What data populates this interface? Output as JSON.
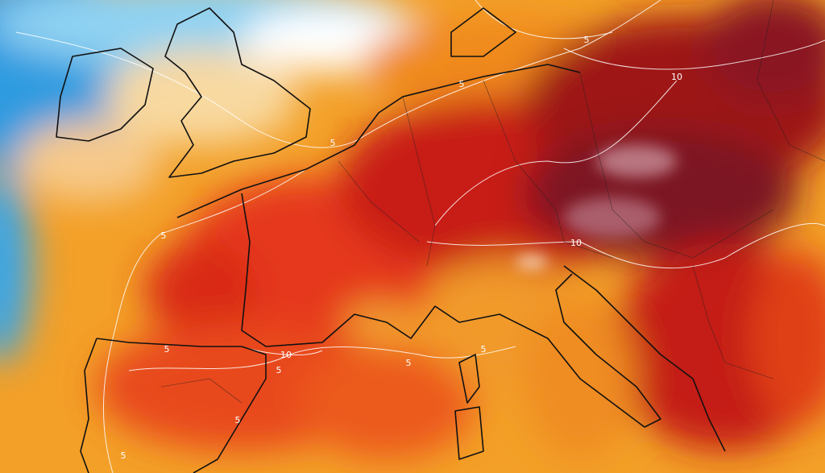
{
  "contour_labels": [
    10,
    5,
    5,
    5,
    5,
    10,
    10,
    5,
    5,
    5,
    5,
    5,
    5
  ]
}
